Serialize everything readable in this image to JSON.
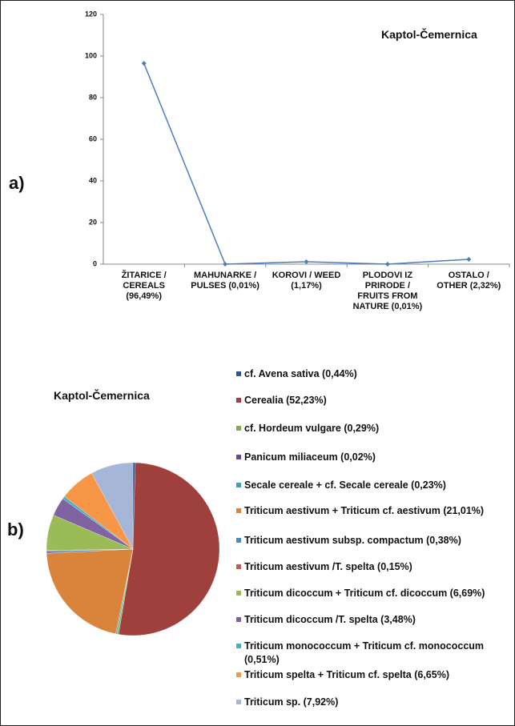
{
  "chart_data": [
    {
      "type": "line",
      "panel_label": "a)",
      "title": "Kaptol-Čemernica",
      "categories": [
        "ŽITARICE / CEREALS (96,49%)",
        "MAHUNARKE / PULSES (0,01%)",
        "KOROVI / WEED (1,17%)",
        "PLODOVI IZ PRIRODE / FRUITS FROM NATURE (0,01%)",
        "OSTALO / OTHER (2,32%)"
      ],
      "values": [
        96.49,
        0.01,
        1.17,
        0.01,
        2.32
      ],
      "color": "#4a7ebb",
      "ylim": [
        0,
        120
      ],
      "yticks": [
        0,
        20,
        40,
        60,
        80,
        100,
        120
      ],
      "grid": false
    },
    {
      "type": "pie",
      "panel_label": "b)",
      "title": "Kaptol-Čemernica",
      "categories": [
        "cf. Avena sativa (0,44%)",
        "Cerealia (52,23%)",
        "cf. Hordeum vulgare (0,29%)",
        "Panicum miliaceum (0,02%)",
        "Secale cereale + cf. Secale cereale (0,23%)",
        "Triticum aestivum + Triticum cf. aestivum (21,01%)",
        "Triticum aestivum subsp. compactum (0,38%)",
        "Triticum aestivum /T. spelta (0,15%)",
        "Triticum dicoccum + Triticum cf. dicoccum (6,69%)",
        "Triticum dicoccum /T. spelta (3,48%)",
        "Triticum monococcum + Triticum cf. monococcum (0,51%)",
        "Triticum spelta + Triticum cf. spelta (6,65%)",
        "Triticum sp. (7,92%)"
      ],
      "values": [
        0.44,
        52.23,
        0.29,
        0.02,
        0.23,
        21.01,
        0.38,
        0.15,
        6.69,
        3.48,
        0.51,
        6.65,
        7.92
      ],
      "colors": [
        "#2f5597",
        "#a0403d",
        "#86a94d",
        "#6a4a8c",
        "#3ba0b8",
        "#d9843a",
        "#4f86c6",
        "#c55a55",
        "#9bbb59",
        "#8064a2",
        "#4bacc6",
        "#f79646",
        "#a5b6d9"
      ]
    }
  ]
}
